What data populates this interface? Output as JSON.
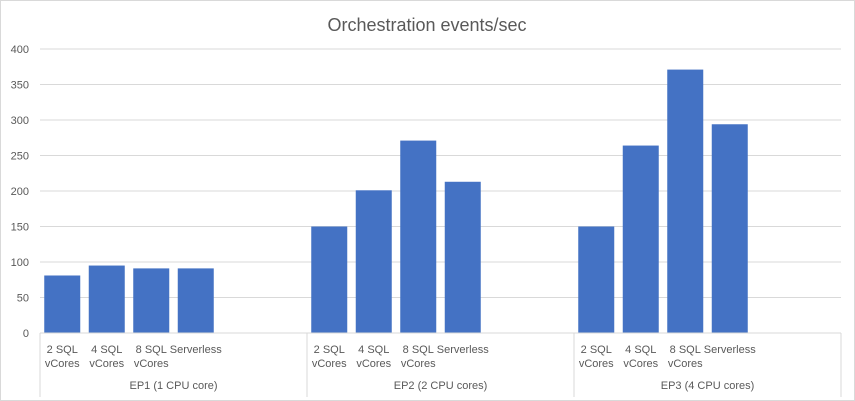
{
  "chart_data": {
    "type": "bar",
    "title": "Orchestration events/sec",
    "xlabel": "",
    "ylabel": "",
    "ylim": [
      0,
      400
    ],
    "yticks": [
      "0",
      "50",
      "100",
      "150",
      "200",
      "250",
      "300",
      "350",
      "400"
    ],
    "grid": true,
    "legend": "none",
    "bar_color": "#4472C4",
    "groups": [
      {
        "label": "EP1 (1 CPU core)",
        "categories": [
          [
            "2 SQL",
            "vCores"
          ],
          [
            "4 SQL",
            "vCores"
          ],
          [
            "8 SQL",
            "vCores"
          ],
          [
            "Serverless"
          ]
        ],
        "values": [
          81,
          95,
          91,
          91
        ]
      },
      {
        "label": "EP2 (2 CPU cores)",
        "categories": [
          [
            "2 SQL",
            "vCores"
          ],
          [
            "4 SQL",
            "vCores"
          ],
          [
            "8 SQL",
            "vCores"
          ],
          [
            "Serverless"
          ]
        ],
        "values": [
          150,
          201,
          271,
          213
        ]
      },
      {
        "label": "EP3 (4 CPU cores)",
        "categories": [
          [
            "2 SQL",
            "vCores"
          ],
          [
            "4 SQL",
            "vCores"
          ],
          [
            "8 SQL",
            "vCores"
          ],
          [
            "Serverless"
          ]
        ],
        "values": [
          150,
          264,
          371,
          294
        ]
      }
    ]
  }
}
